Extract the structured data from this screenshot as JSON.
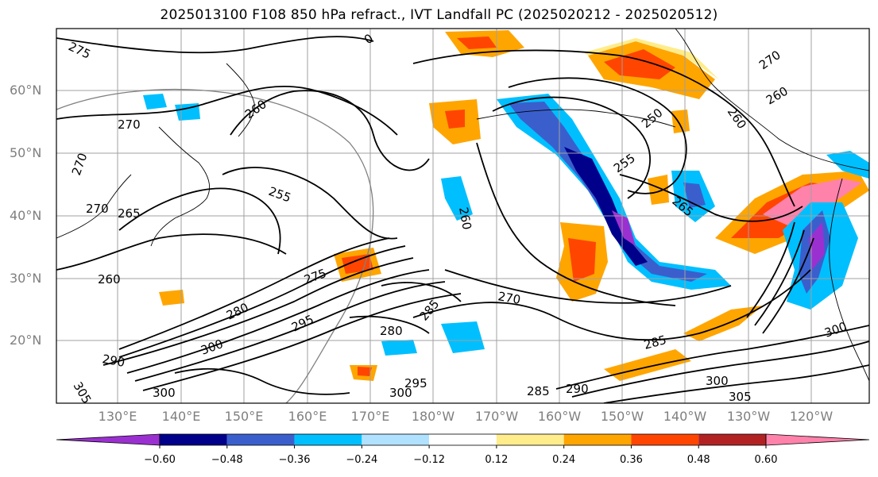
{
  "title": "2025013100 F108 850 hPa refract., IVT Landfall PC (2025020212 - 2025020512)",
  "latitude_labels": [
    "60°N",
    "50°N",
    "40°N",
    "30°N",
    "20°N"
  ],
  "longitude_labels": [
    "130°E",
    "140°E",
    "150°E",
    "160°E",
    "170°E",
    "180°W",
    "170°W",
    "160°W",
    "150°W",
    "140°W",
    "130°W",
    "120°W"
  ],
  "contour_labels": [
    "275",
    "270",
    "270",
    "270",
    "265",
    "260",
    "260",
    "255",
    "260",
    "250",
    "255",
    "265",
    "260",
    "275",
    "280",
    "295",
    "300",
    "290",
    "305",
    "300",
    "285",
    "270",
    "280",
    "285",
    "290",
    "300",
    "305",
    "295",
    "270",
    "300",
    "0",
    "260",
    "285",
    "300"
  ],
  "colorbar": {
    "tick_labels": [
      "−0.60",
      "−0.48",
      "−0.36",
      "−0.24",
      "−0.12",
      "0.12",
      "0.24",
      "0.36",
      "0.48",
      "0.60"
    ],
    "colors": [
      "#9b30d0",
      "#00008b",
      "#3a5fcd",
      "#00bfff",
      "#b0e2ff",
      "#ffffff",
      "#ffec8b",
      "#ffa500",
      "#ff4500",
      "#b22222",
      "#ff82ab",
      "#ff82ab"
    ]
  },
  "map_style": {
    "land_color": "#ffffff",
    "contour_color": "#000000",
    "grid_color": "#a0a0a0"
  }
}
